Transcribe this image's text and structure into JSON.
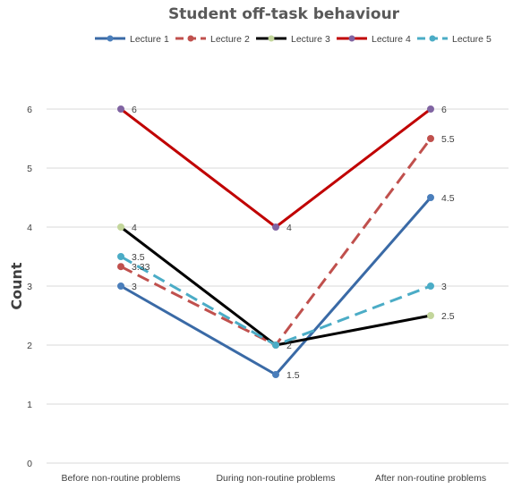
{
  "chart_data": {
    "type": "line",
    "title": "Student off-task behaviour",
    "xlabel": "",
    "ylabel": "Count",
    "ylim": [
      0,
      6
    ],
    "yticks": [
      0,
      1,
      2,
      3,
      4,
      5,
      6
    ],
    "grid": true,
    "legend_position": "top",
    "categories": [
      "Before non-routine problems",
      "During non-routine problems",
      "After non-routine problems"
    ],
    "series": [
      {
        "name": "Lecture 1",
        "values": [
          3,
          1.5,
          4.5
        ],
        "color": "#3a6aa6",
        "marker_color": "#4a7ebb",
        "dashed": false,
        "labels": [
          "3",
          "1.5",
          "4.5"
        ]
      },
      {
        "name": "Lecture 2",
        "values": [
          3.33,
          2,
          5.5
        ],
        "color": "#c0504d",
        "marker_color": "#c0504d",
        "dashed": true,
        "labels": [
          "3.33",
          "",
          "5.5"
        ]
      },
      {
        "name": "Lecture 3",
        "values": [
          4,
          2,
          2.5
        ],
        "color": "#000000",
        "marker_color": "#c3d69b",
        "dashed": false,
        "labels": [
          "4",
          "2",
          "2.5"
        ]
      },
      {
        "name": "Lecture 4",
        "values": [
          6,
          4,
          6
        ],
        "color": "#c00000",
        "marker_color": "#8064a2",
        "dashed": false,
        "labels": [
          "6",
          "4",
          "6"
        ]
      },
      {
        "name": "Lecture 5",
        "values": [
          3.5,
          2,
          3
        ],
        "color": "#4bacc6",
        "marker_color": "#4bacc6",
        "dashed": true,
        "labels": [
          "3.5",
          "",
          "3"
        ]
      }
    ]
  }
}
